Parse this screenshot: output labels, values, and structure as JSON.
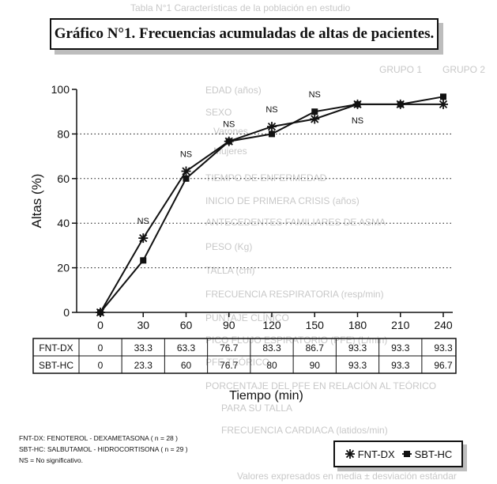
{
  "title": "Gráfico N°1. Frecuencias acumuladas de altas de pacientes.",
  "background_text": [
    "Tabla N°1 Características de la población en estudio",
    "GRUPO 1",
    "GRUPO 2",
    "EDAD (años)",
    "SEXO",
    "Varones",
    "Mujeres",
    "TIEMPO DE ENFERMEDAD",
    "INICIO DE PRIMERA CRISIS (años)",
    "ANTECEDENTES FAMILIARES DE ASMA",
    "PESO (Kg)",
    "TALLA (cm)",
    "FRECUENCIA RESPIRATORIA (resp/min)",
    "PUNTAJE CLÍNICO",
    "PICO FLUJO ESPIRATORIO (PFE) (L/min)",
    "PFE TEÓRICO",
    "PORCENTAJE DEL PFE EN RELACIÓN AL TEÓRICO",
    "PARA SU TALLA",
    "FRECUENCIA CARDIACA (latidos/min)",
    "Valores expresados en media ± desviación estándar"
  ],
  "chart_data": {
    "type": "line",
    "x": [
      0,
      30,
      60,
      90,
      120,
      150,
      180,
      210,
      240
    ],
    "xlabel": "Tiempo (min)",
    "ylabel": "Altas (%)",
    "ylim": [
      0,
      100
    ],
    "yticks": [
      0,
      20,
      40,
      60,
      80,
      100
    ],
    "grid": "dotted horizontal at 20, 40, 60, 80",
    "series": [
      {
        "name": "FNT-DX",
        "marker": "asterisk",
        "values": [
          0,
          33.3,
          63.3,
          76.7,
          83.3,
          86.7,
          93.3,
          93.3,
          93.3
        ],
        "labels": [
          "0",
          "33.3",
          "63.3",
          "76.7",
          "83.3",
          "86.7",
          "93.3",
          "93.3",
          "93.3"
        ]
      },
      {
        "name": "SBT-HC",
        "marker": "square",
        "values": [
          0,
          23.3,
          60,
          76.7,
          80,
          90,
          93.3,
          93.3,
          96.7
        ],
        "labels": [
          "0",
          "23.3",
          "60",
          "76.7",
          "80",
          "90",
          "93.3",
          "93.3",
          "96.7"
        ]
      }
    ],
    "annotations": [
      {
        "x": 30,
        "text": "NS",
        "position": "above"
      },
      {
        "x": 60,
        "text": "NS",
        "position": "above"
      },
      {
        "x": 90,
        "text": "NS",
        "position": "above"
      },
      {
        "x": 120,
        "text": "NS",
        "position": "above"
      },
      {
        "x": 150,
        "text": "NS",
        "position": "above"
      },
      {
        "x": 180,
        "text": "NS",
        "position": "below"
      }
    ],
    "legend": "bottom-right"
  },
  "footnotes": [
    "FNT-DX: FENOTEROL - DEXAMETASONA ( n = 28 )",
    "SBT-HC: SALBUTAMOL - HIDROCORTISONA ( n = 29 )",
    "NS = No significativo."
  ],
  "colors": {
    "ink": "#111111",
    "shadow": "#bdbdbd",
    "ghost_text": "#c8c8c8"
  }
}
